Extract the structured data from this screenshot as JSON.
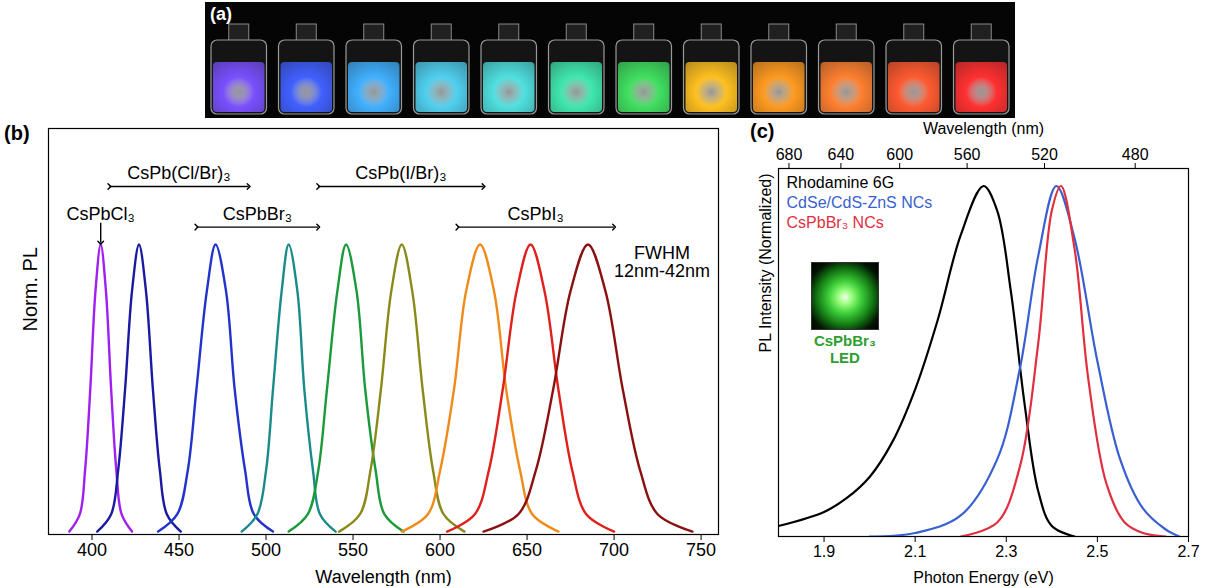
{
  "chart_data": [
    {
      "type": "image",
      "title": "(a)",
      "colors": [
        "#7a50ff",
        "#4060ff",
        "#40b0ff",
        "#50d0f0",
        "#50e0e0",
        "#40e8b0",
        "#40e060",
        "#ffc020",
        "#ff9a20",
        "#ff8030",
        "#ff5a30",
        "#ff3030"
      ]
    },
    {
      "type": "line",
      "title": "(b)",
      "x_label": "Wavelength (nm)",
      "y_label": "Norm. PL",
      "xlim": [
        375,
        760
      ],
      "ylim": [
        0,
        1.4
      ],
      "xticks": [
        400,
        450,
        500,
        550,
        600,
        650,
        700,
        750
      ],
      "tick_labels": "x",
      "series": [
        {
          "color": "#a020f0",
          "x": [
            387,
            393,
            396,
            399,
            402,
            405,
            408,
            411,
            414,
            417,
            423
          ],
          "values": [
            0.01,
            0.07,
            0.22,
            0.5,
            0.84,
            1,
            0.84,
            0.5,
            0.22,
            0.07,
            0.01
          ]
        },
        {
          "color": "#1a1aa0",
          "x": [
            403,
            411,
            415,
            419,
            423,
            427,
            431,
            435,
            439,
            443,
            451
          ],
          "values": [
            0.01,
            0.07,
            0.22,
            0.5,
            0.84,
            1,
            0.84,
            0.5,
            0.22,
            0.07,
            0.01
          ]
        },
        {
          "color": "#2233cc",
          "x": [
            438,
            449,
            455,
            460,
            466,
            471,
            477,
            482,
            488,
            493,
            504
          ],
          "values": [
            0.01,
            0.07,
            0.22,
            0.5,
            0.84,
            1,
            0.84,
            0.5,
            0.22,
            0.07,
            0.01
          ]
        },
        {
          "color": "#1a8a8a",
          "x": [
            486,
            495,
            500,
            504,
            509,
            513,
            518,
            522,
            527,
            531,
            540
          ],
          "values": [
            0.01,
            0.07,
            0.22,
            0.5,
            0.84,
            1,
            0.84,
            0.5,
            0.22,
            0.07,
            0.01
          ]
        },
        {
          "color": "#1a9a3a",
          "x": [
            513,
            524,
            530,
            535,
            541,
            546,
            552,
            557,
            563,
            568,
            579
          ],
          "values": [
            0.01,
            0.07,
            0.22,
            0.5,
            0.84,
            1,
            0.84,
            0.5,
            0.22,
            0.07,
            0.01
          ]
        },
        {
          "color": "#8a8a1a",
          "x": [
            542,
            554,
            560,
            566,
            572,
            578,
            584,
            590,
            596,
            602,
            614
          ],
          "values": [
            0.01,
            0.07,
            0.22,
            0.5,
            0.84,
            1,
            0.84,
            0.5,
            0.22,
            0.07,
            0.01
          ]
        },
        {
          "color": "#f08a1a",
          "x": [
            578,
            593,
            600,
            608,
            615,
            623,
            631,
            638,
            646,
            653,
            668
          ],
          "values": [
            0.01,
            0.07,
            0.22,
            0.5,
            0.84,
            1,
            0.84,
            0.5,
            0.22,
            0.07,
            0.01
          ]
        },
        {
          "color": "#e0201a",
          "x": [
            604,
            620,
            628,
            636,
            644,
            652,
            660,
            668,
            676,
            684,
            700
          ],
          "values": [
            0.01,
            0.07,
            0.22,
            0.5,
            0.84,
            1,
            0.84,
            0.5,
            0.22,
            0.07,
            0.01
          ]
        },
        {
          "color": "#8b1010",
          "x": [
            625,
            645,
            655,
            665,
            675,
            685,
            695,
            705,
            715,
            725,
            745
          ],
          "values": [
            0.01,
            0.07,
            0.22,
            0.5,
            0.84,
            1,
            0.84,
            0.5,
            0.22,
            0.07,
            0.01
          ]
        }
      ],
      "annotations": [
        {
          "text": "CsPbCl₃",
          "x": 405
        },
        {
          "text": "CsPbBr₃",
          "x_range": [
            460,
            530
          ]
        },
        {
          "text": "CsPbI₃",
          "x_range": [
            610,
            700
          ]
        },
        {
          "text": "CsPb(Cl/Br)₃",
          "x_range": [
            410,
            490
          ]
        },
        {
          "text": "CsPb(I/Br)₃",
          "x_range": [
            530,
            625
          ]
        },
        {
          "text": "FWHM\n12nm-42nm"
        }
      ]
    },
    {
      "type": "line",
      "title": "(c)",
      "x_label": "Photon Energy (eV)",
      "x2_label": "Wavelength (nm)",
      "y_label": "PL Intensity (Normalized)",
      "xlim": [
        1.8,
        2.7
      ],
      "ylim": [
        0,
        1.05
      ],
      "xticks": [
        1.9,
        2.1,
        2.3,
        2.5,
        2.7
      ],
      "x2ticks": [
        {
          "value": 1.823,
          "label": "680"
        },
        {
          "value": 1.937,
          "label": "640"
        },
        {
          "value": 2.066,
          "label": "600"
        },
        {
          "value": 2.214,
          "label": "560"
        },
        {
          "value": 2.384,
          "label": "520"
        },
        {
          "value": 2.583,
          "label": "480"
        }
      ],
      "tick_labels": "x",
      "legend": "top-left",
      "series": [
        {
          "name": "Rhodamine 6G",
          "color": "#000000",
          "x": [
            1.8,
            1.9,
            1.95,
            2.0,
            2.05,
            2.1,
            2.15,
            2.2,
            2.25,
            2.28,
            2.31,
            2.34,
            2.37,
            2.4,
            2.45
          ],
          "values": [
            0.03,
            0.07,
            0.11,
            0.17,
            0.27,
            0.42,
            0.62,
            0.86,
            1.0,
            0.93,
            0.7,
            0.38,
            0.13,
            0.03,
            0.0
          ]
        },
        {
          "name": "CdSe/CdS-ZnS NCs",
          "color": "#3a5fd0",
          "x": [
            2.0,
            2.1,
            2.2,
            2.28,
            2.33,
            2.37,
            2.41,
            2.45,
            2.5,
            2.55,
            2.6,
            2.65,
            2.68
          ],
          "values": [
            0.0,
            0.01,
            0.06,
            0.22,
            0.48,
            0.8,
            1.0,
            0.85,
            0.5,
            0.22,
            0.08,
            0.02,
            0.0
          ]
        },
        {
          "name": "CsPbBr₃ NCs",
          "color": "#e03040",
          "x": [
            2.2,
            2.28,
            2.33,
            2.37,
            2.4,
            2.42,
            2.45,
            2.48,
            2.52,
            2.56,
            2.6,
            2.65
          ],
          "values": [
            0.0,
            0.04,
            0.2,
            0.55,
            0.93,
            1.0,
            0.82,
            0.45,
            0.15,
            0.04,
            0.01,
            0.0
          ]
        }
      ],
      "annotations": [
        {
          "text": "CsPbBr₃\nLED",
          "color": "#2e9e2e"
        }
      ]
    }
  ]
}
